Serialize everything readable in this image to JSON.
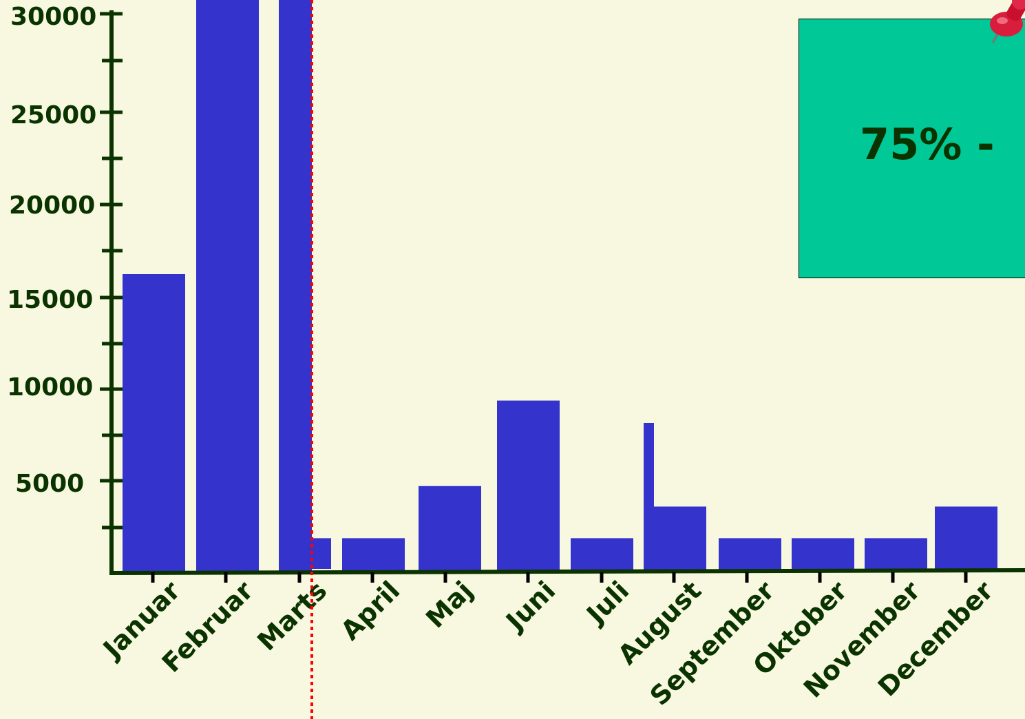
{
  "chart_data": {
    "type": "bar",
    "categories": [
      "Januar",
      "Februar",
      "Marts",
      "April",
      "Maj",
      "Juni",
      "Juli",
      "August",
      "September",
      "Oktober",
      "November",
      "December"
    ],
    "values": [
      16000,
      31000,
      31000,
      1800,
      4600,
      9200,
      1800,
      3500,
      1800,
      1800,
      1800,
      3500
    ],
    "extra_marks": [
      {
        "category": "Marts",
        "value": 1800,
        "note": "small overlay segment"
      },
      {
        "category": "August",
        "value": 8000,
        "note": "thin spike"
      }
    ],
    "yticks": [
      "30000",
      "25000",
      "20000",
      "15000",
      "10000",
      "5000"
    ],
    "ylim": [
      0,
      30000
    ],
    "reference_line": {
      "category": "Marts",
      "style": "dotted",
      "color": "#ff0000"
    },
    "bar_color": "#3434cc",
    "axis_color": "#0a3300",
    "background": "#f8f8e0",
    "grid": false
  },
  "note": {
    "text": "75% -",
    "color": "#00c896",
    "icon": "pushpin-icon"
  }
}
